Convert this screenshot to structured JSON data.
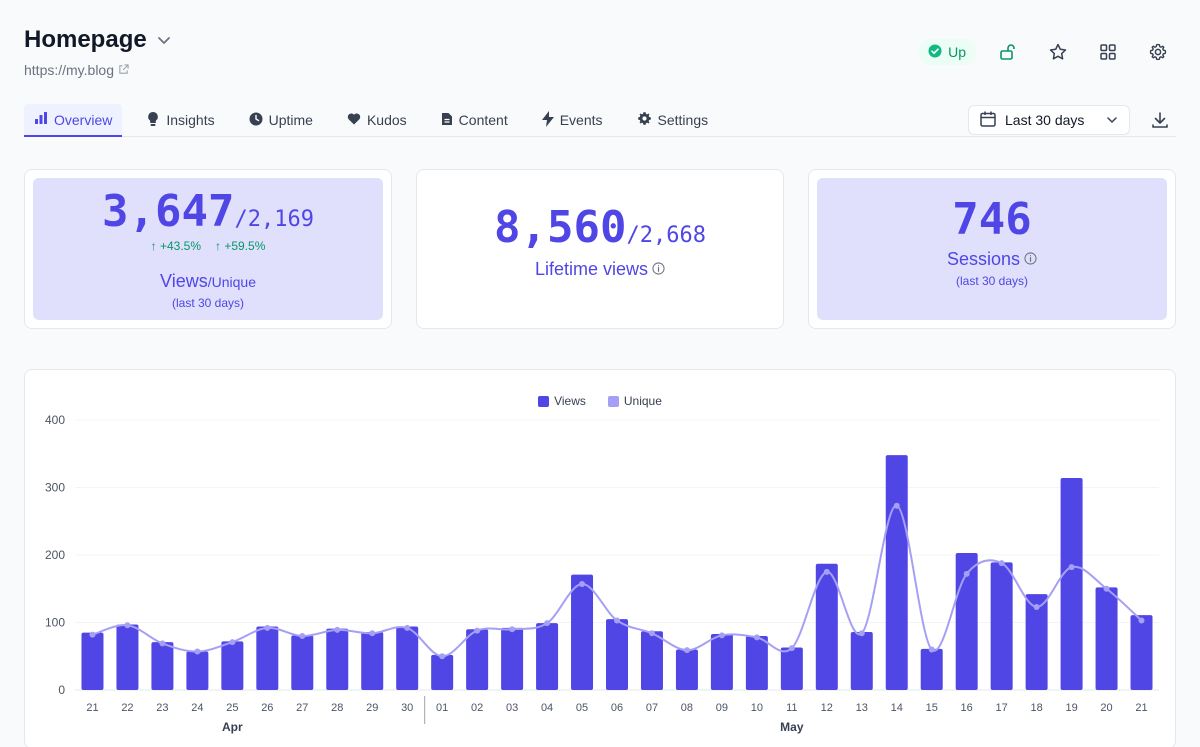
{
  "header": {
    "title": "Homepage",
    "url": "https://my.blog"
  },
  "status": {
    "label": "Up",
    "color": "#059669"
  },
  "top_icons": [
    "unlock-icon",
    "star-icon",
    "grid-icon",
    "gear-icon"
  ],
  "tabs": [
    {
      "label": "Overview",
      "icon": "bar-chart-icon",
      "active": true
    },
    {
      "label": "Insights",
      "icon": "lightbulb-icon",
      "active": false
    },
    {
      "label": "Uptime",
      "icon": "clock-icon",
      "active": false
    },
    {
      "label": "Kudos",
      "icon": "heart-icon",
      "active": false
    },
    {
      "label": "Content",
      "icon": "document-icon",
      "active": false
    },
    {
      "label": "Events",
      "icon": "bolt-icon",
      "active": false
    },
    {
      "label": "Settings",
      "icon": "gear-icon",
      "active": false
    }
  ],
  "date_range": {
    "selected": "Last 30 days"
  },
  "stats": {
    "views": {
      "value": "3,647",
      "unique": "/2,169",
      "delta_views": "↑ +43.5%",
      "delta_unique": "↑ +59.5%",
      "label": "Views",
      "label_sub": "/Unique",
      "note": "(last 30 days)"
    },
    "lifetime": {
      "value": "8,560",
      "unique": "/2,668",
      "label": "Lifetime views"
    },
    "sessions": {
      "value": "746",
      "label": "Sessions",
      "note": "(last 30 days)"
    }
  },
  "colors": {
    "accent": "#4f46e5",
    "bar": "#5046e5",
    "line": "#a5a0f5",
    "card_shade": "#e0e0fc",
    "positive": "#059669"
  },
  "chart_data": {
    "type": "bar",
    "categories": [
      "21",
      "22",
      "23",
      "24",
      "25",
      "26",
      "27",
      "28",
      "29",
      "30",
      "01",
      "02",
      "03",
      "04",
      "05",
      "06",
      "07",
      "08",
      "09",
      "10",
      "11",
      "12",
      "13",
      "14",
      "15",
      "16",
      "17",
      "18",
      "19",
      "20",
      "21"
    ],
    "month_labels": [
      {
        "label": "Apr",
        "at_index": 4
      },
      {
        "label": "May",
        "at_index": 20
      }
    ],
    "series": [
      {
        "name": "Views",
        "type": "bar",
        "values": [
          85,
          97,
          71,
          57,
          72,
          94,
          81,
          91,
          86,
          94,
          52,
          90,
          92,
          99,
          171,
          105,
          87,
          60,
          83,
          80,
          63,
          187,
          86,
          348,
          61,
          203,
          189,
          142,
          314,
          152,
          111
        ]
      },
      {
        "name": "Unique",
        "type": "line",
        "values": [
          82,
          96,
          69,
          57,
          71,
          92,
          80,
          89,
          84,
          92,
          50,
          88,
          90,
          99,
          157,
          103,
          84,
          59,
          81,
          78,
          62,
          175,
          84,
          273,
          60,
          172,
          188,
          123,
          182,
          150,
          103
        ]
      }
    ],
    "ylim": [
      0,
      400
    ],
    "yticks": [
      "0",
      "100",
      "200",
      "300",
      "400"
    ],
    "grid": true,
    "legend_position": "top-center"
  }
}
